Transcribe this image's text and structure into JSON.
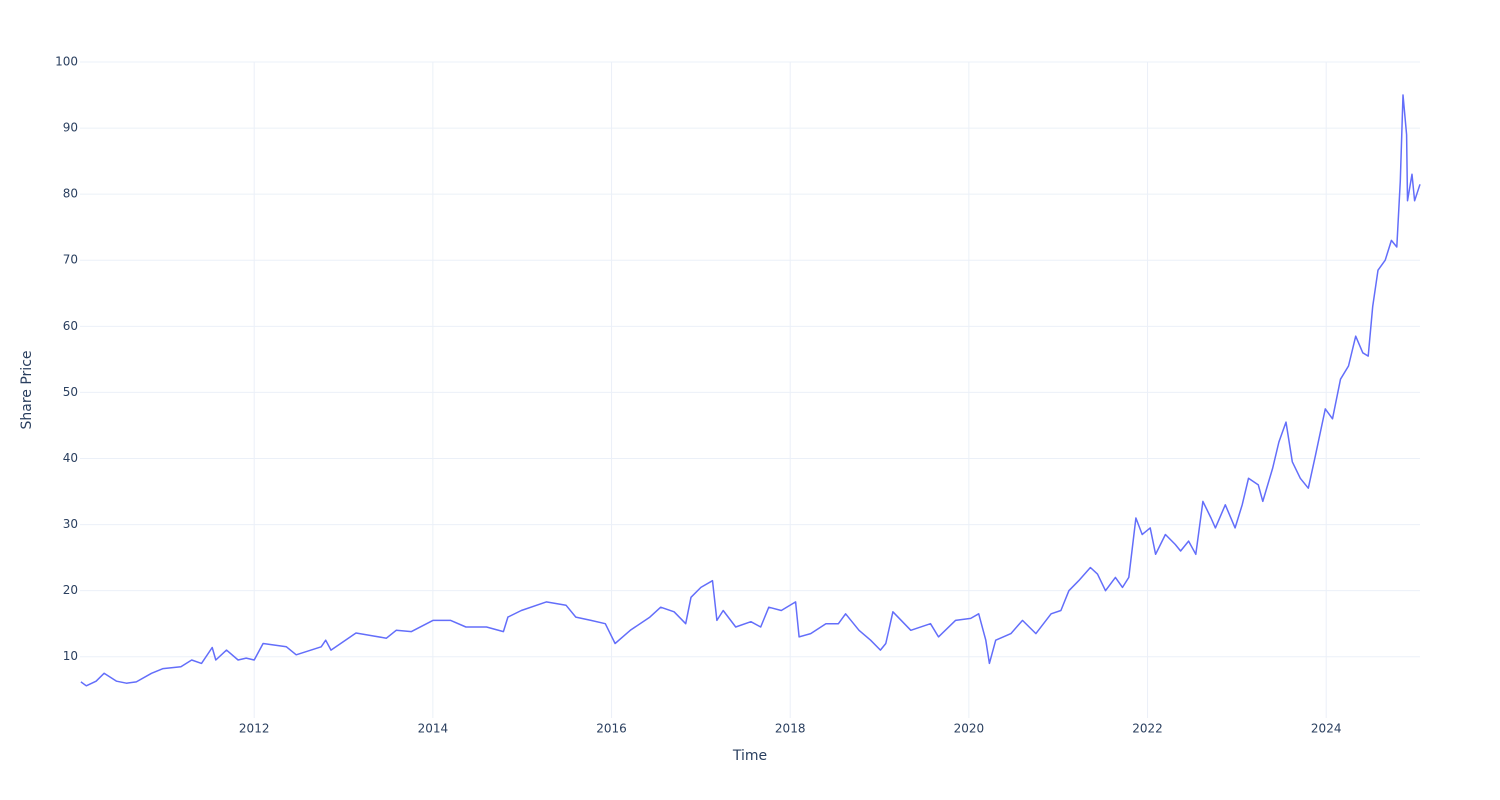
{
  "chart_data": {
    "type": "line",
    "x_label": "Time",
    "y_label": "Share Price",
    "x": [
      2010.06,
      2010.12,
      2010.23,
      2010.32,
      2010.46,
      2010.57,
      2010.68,
      2010.85,
      2010.98,
      2011.18,
      2011.3,
      2011.41,
      2011.53,
      2011.57,
      2011.69,
      2011.82,
      2011.91,
      2012.0,
      2012.1,
      2012.36,
      2012.47,
      2012.75,
      2012.8,
      2012.86,
      2013.14,
      2013.48,
      2013.59,
      2013.76,
      2014.0,
      2014.2,
      2014.37,
      2014.6,
      2014.79,
      2014.84,
      2014.99,
      2015.27,
      2015.49,
      2015.6,
      2015.77,
      2015.93,
      2016.04,
      2016.21,
      2016.43,
      2016.55,
      2016.7,
      2016.83,
      2016.89,
      2017.0,
      2017.13,
      2017.18,
      2017.25,
      2017.39,
      2017.56,
      2017.67,
      2017.76,
      2017.9,
      2018.06,
      2018.1,
      2018.23,
      2018.4,
      2018.54,
      2018.62,
      2018.77,
      2018.9,
      2019.01,
      2019.07,
      2019.15,
      2019.35,
      2019.57,
      2019.66,
      2019.85,
      2020.02,
      2020.11,
      2020.19,
      2020.23,
      2020.3,
      2020.47,
      2020.6,
      2020.75,
      2020.92,
      2021.03,
      2021.12,
      2021.23,
      2021.36,
      2021.44,
      2021.53,
      2021.64,
      2021.72,
      2021.79,
      2021.87,
      2021.94,
      2022.03,
      2022.09,
      2022.2,
      2022.31,
      2022.37,
      2022.46,
      2022.54,
      2022.62,
      2022.71,
      2022.76,
      2022.87,
      2022.98,
      2023.06,
      2023.13,
      2023.24,
      2023.29,
      2023.4,
      2023.47,
      2023.55,
      2023.62,
      2023.71,
      2023.8,
      2023.88,
      2023.99,
      2024.07,
      2024.16,
      2024.25,
      2024.33,
      2024.41,
      2024.47,
      2024.52,
      2024.58,
      2024.66,
      2024.73,
      2024.79,
      2024.83,
      2024.86,
      2024.9,
      2024.91,
      2024.96,
      2024.99,
      2025.05
    ],
    "series": [
      {
        "color": "#636efa",
        "values": [
          6.2,
          5.6,
          6.3,
          7.5,
          6.3,
          6.0,
          6.2,
          7.5,
          8.2,
          8.5,
          9.5,
          9.0,
          11.4,
          9.5,
          11.0,
          9.5,
          9.8,
          9.5,
          12.0,
          11.5,
          10.3,
          11.5,
          12.5,
          11.0,
          13.6,
          12.8,
          14.0,
          13.8,
          15.5,
          15.5,
          14.5,
          14.5,
          13.8,
          16.0,
          17.0,
          18.3,
          17.8,
          16.0,
          15.5,
          15.0,
          12.0,
          14.0,
          16.0,
          17.5,
          16.8,
          15.0,
          19.0,
          20.5,
          21.5,
          15.5,
          17.0,
          14.5,
          15.3,
          14.5,
          17.5,
          17.0,
          18.3,
          13.0,
          13.5,
          15.0,
          15.0,
          16.5,
          14.0,
          12.5,
          11.0,
          12.0,
          16.8,
          14.0,
          15.0,
          13.0,
          15.5,
          15.8,
          16.5,
          12.5,
          9.0,
          12.5,
          13.5,
          15.5,
          13.5,
          16.5,
          17.0,
          20.0,
          21.5,
          23.5,
          22.5,
          20.0,
          22.0,
          20.5,
          22.0,
          31.0,
          28.5,
          29.5,
          25.5,
          28.5,
          27.0,
          26.0,
          27.5,
          25.5,
          33.5,
          31.0,
          29.5,
          33.0,
          29.5,
          33.0,
          37.0,
          36.0,
          33.5,
          38.5,
          42.5,
          45.5,
          39.5,
          37.0,
          35.5,
          40.5,
          47.5,
          46.0,
          52.0,
          54.0,
          58.5,
          56.0,
          55.5,
          63.0,
          68.5,
          70.0,
          73.0,
          72.0,
          82.0,
          95.0,
          89.0,
          79.0,
          83.0,
          79.0,
          81.5
        ]
      }
    ],
    "xlim": [
      2010.05,
      2025.05
    ],
    "xticks": [
      2012,
      2014,
      2016,
      2018,
      2020,
      2022,
      2024
    ],
    "ylim": [
      3,
      100
    ],
    "yticks": [
      10,
      20,
      30,
      40,
      50,
      60,
      70,
      80,
      90,
      100
    ],
    "grid": true
  }
}
